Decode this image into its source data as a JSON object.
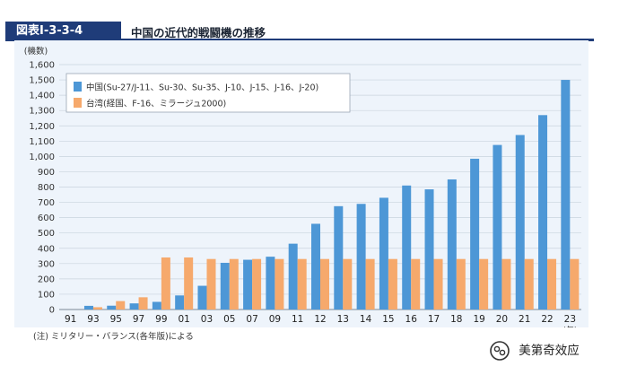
{
  "header": {
    "badge": "図表Ⅰ-3-3-4",
    "title": "中国の近代的戦闘機の推移"
  },
  "chart_data": {
    "type": "bar",
    "title": "中国の近代的戦闘機の推移",
    "ylabel": "(機数)",
    "xunit": "(年)",
    "ylim": [
      0,
      1600
    ],
    "yticks": [
      0,
      100,
      200,
      300,
      400,
      500,
      600,
      700,
      800,
      900,
      1000,
      1100,
      1200,
      1300,
      1400,
      1500,
      1600
    ],
    "grid": "horizontal",
    "legend_position": "top-left",
    "categories": [
      "91",
      "93",
      "95",
      "97",
      "99",
      "01",
      "03",
      "05",
      "07",
      "09",
      "11",
      "12",
      "13",
      "14",
      "15",
      "16",
      "17",
      "18",
      "19",
      "20",
      "21",
      "22",
      "23"
    ],
    "series": [
      {
        "name": "中国(Su-27/J-11、Su-30、Su-35、J-10、J-15、J-16、J-20)",
        "color": "#4d97d6",
        "values": [
          0,
          24,
          25,
          40,
          50,
          92,
          155,
          305,
          325,
          345,
          430,
          560,
          675,
          690,
          730,
          810,
          785,
          850,
          985,
          1075,
          1140,
          1270,
          1500
        ]
      },
      {
        "name": "台湾(経国、F-16、ミラージュ2000)",
        "color": "#f6a96c",
        "values": [
          0,
          15,
          55,
          80,
          340,
          340,
          330,
          330,
          330,
          330,
          330,
          330,
          330,
          330,
          330,
          330,
          330,
          330,
          330,
          330,
          330,
          330,
          330
        ]
      }
    ]
  },
  "footnote": "(注) ミリタリー・バランス(各年版)による",
  "watermark": "美第奇效应",
  "watermark_icon": "wechat-icon"
}
